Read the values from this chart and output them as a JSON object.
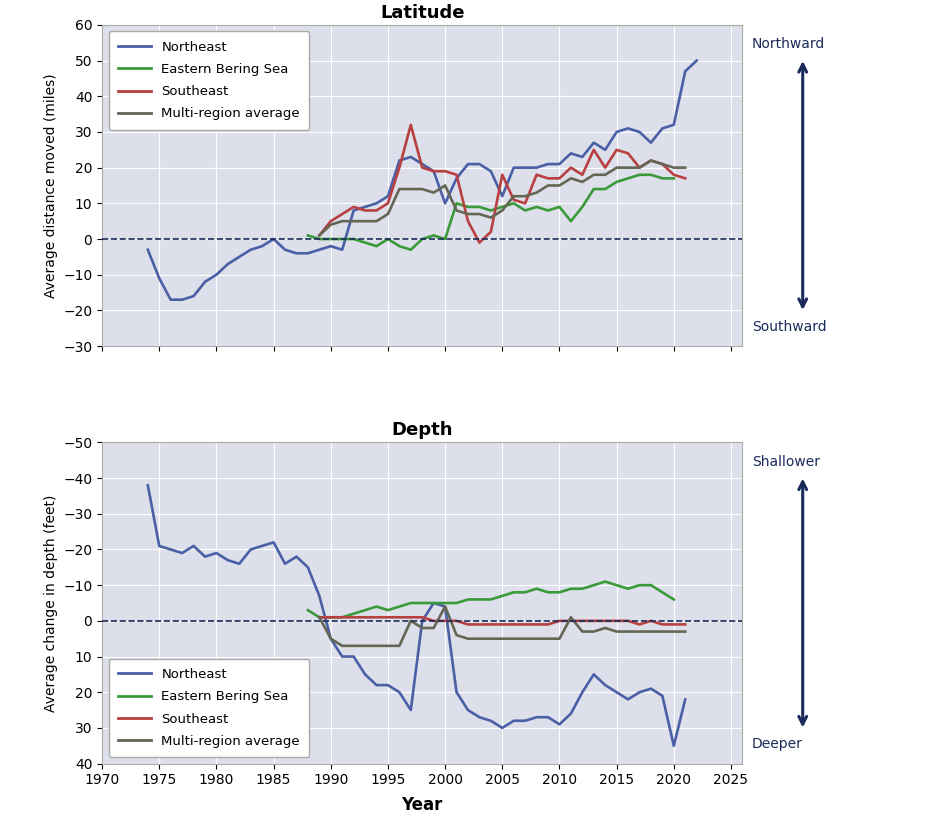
{
  "lat": {
    "northeast": {
      "x": [
        1974,
        1975,
        1976,
        1977,
        1978,
        1979,
        1980,
        1981,
        1982,
        1983,
        1984,
        1985,
        1986,
        1987,
        1988,
        1989,
        1990,
        1991,
        1992,
        1993,
        1994,
        1995,
        1996,
        1997,
        1998,
        1999,
        2000,
        2001,
        2002,
        2003,
        2004,
        2005,
        2006,
        2007,
        2008,
        2009,
        2010,
        2011,
        2012,
        2013,
        2014,
        2015,
        2016,
        2017,
        2018,
        2019,
        2020,
        2021,
        2022
      ],
      "y": [
        -3,
        -11,
        -17,
        -17,
        -16,
        -12,
        -10,
        -7,
        -5,
        -3,
        -2,
        0,
        -3,
        -4,
        -4,
        -3,
        -2,
        -3,
        8,
        9,
        10,
        12,
        22,
        23,
        21,
        19,
        10,
        17,
        21,
        21,
        19,
        12,
        20,
        20,
        20,
        21,
        21,
        24,
        23,
        27,
        25,
        30,
        31,
        30,
        27,
        31,
        32,
        47,
        50
      ]
    },
    "eastern_bering_sea": {
      "x": [
        1988,
        1989,
        1990,
        1991,
        1992,
        1993,
        1994,
        1995,
        1996,
        1997,
        1998,
        1999,
        2000,
        2001,
        2002,
        2003,
        2004,
        2005,
        2006,
        2007,
        2008,
        2009,
        2010,
        2011,
        2012,
        2013,
        2014,
        2015,
        2016,
        2017,
        2018,
        2019,
        2020
      ],
      "y": [
        1,
        0,
        0,
        0,
        0,
        -1,
        -2,
        0,
        -2,
        -3,
        0,
        1,
        0,
        10,
        9,
        9,
        8,
        9,
        10,
        8,
        9,
        8,
        9,
        5,
        9,
        14,
        14,
        16,
        17,
        18,
        18,
        17,
        17
      ]
    },
    "southeast": {
      "x": [
        1989,
        1990,
        1991,
        1992,
        1993,
        1994,
        1995,
        1996,
        1997,
        1998,
        1999,
        2000,
        2001,
        2002,
        2003,
        2004,
        2005,
        2006,
        2007,
        2008,
        2009,
        2010,
        2011,
        2012,
        2013,
        2014,
        2015,
        2016,
        2017,
        2018,
        2019,
        2020,
        2021
      ],
      "y": [
        1,
        5,
        7,
        9,
        8,
        8,
        10,
        20,
        32,
        20,
        19,
        19,
        18,
        5,
        -1,
        2,
        18,
        11,
        10,
        18,
        17,
        17,
        20,
        18,
        25,
        20,
        25,
        24,
        20,
        22,
        21,
        18,
        17
      ]
    },
    "multi_region": {
      "x": [
        1989,
        1990,
        1991,
        1992,
        1993,
        1994,
        1995,
        1996,
        1997,
        1998,
        1999,
        2000,
        2001,
        2002,
        2003,
        2004,
        2005,
        2006,
        2007,
        2008,
        2009,
        2010,
        2011,
        2012,
        2013,
        2014,
        2015,
        2016,
        2017,
        2018,
        2019,
        2020,
        2021
      ],
      "y": [
        1,
        4,
        5,
        5,
        5,
        5,
        7,
        14,
        14,
        14,
        13,
        15,
        8,
        7,
        7,
        6,
        8,
        12,
        12,
        13,
        15,
        15,
        17,
        16,
        18,
        18,
        20,
        20,
        20,
        22,
        21,
        20,
        20
      ]
    }
  },
  "depth": {
    "northeast": {
      "x": [
        1974,
        1975,
        1976,
        1977,
        1978,
        1979,
        1980,
        1981,
        1982,
        1983,
        1984,
        1985,
        1986,
        1987,
        1988,
        1989,
        1990,
        1991,
        1992,
        1993,
        1994,
        1995,
        1996,
        1997,
        1998,
        1999,
        2000,
        2001,
        2002,
        2003,
        2004,
        2005,
        2006,
        2007,
        2008,
        2009,
        2010,
        2011,
        2012,
        2013,
        2014,
        2015,
        2016,
        2017,
        2018,
        2019,
        2020,
        2021
      ],
      "y": [
        -38,
        -21,
        -20,
        -19,
        -21,
        -18,
        -19,
        -17,
        -16,
        -20,
        -21,
        -22,
        -16,
        -18,
        -15,
        -7,
        5,
        10,
        10,
        15,
        18,
        18,
        20,
        25,
        0,
        -5,
        -4,
        20,
        25,
        27,
        28,
        30,
        28,
        28,
        27,
        27,
        29,
        26,
        20,
        15,
        18,
        20,
        22,
        20,
        19,
        21,
        35,
        22
      ]
    },
    "eastern_bering_sea": {
      "x": [
        1988,
        1989,
        1990,
        1991,
        1992,
        1993,
        1994,
        1995,
        1996,
        1997,
        1998,
        1999,
        2000,
        2001,
        2002,
        2003,
        2004,
        2005,
        2006,
        2007,
        2008,
        2009,
        2010,
        2011,
        2012,
        2013,
        2014,
        2015,
        2016,
        2017,
        2018,
        2019,
        2020
      ],
      "y": [
        -3,
        -1,
        -1,
        -1,
        -2,
        -3,
        -4,
        -3,
        -4,
        -5,
        -5,
        -5,
        -5,
        -5,
        -6,
        -6,
        -6,
        -7,
        -8,
        -8,
        -9,
        -8,
        -8,
        -9,
        -9,
        -10,
        -11,
        -10,
        -9,
        -10,
        -10,
        -8,
        -6
      ]
    },
    "southeast": {
      "x": [
        1989,
        1990,
        1991,
        1992,
        1993,
        1994,
        1995,
        1996,
        1997,
        1998,
        1999,
        2000,
        2001,
        2002,
        2003,
        2004,
        2005,
        2006,
        2007,
        2008,
        2009,
        2010,
        2011,
        2012,
        2013,
        2014,
        2015,
        2016,
        2017,
        2018,
        2019,
        2020,
        2021
      ],
      "y": [
        -1,
        -1,
        -1,
        -1,
        -1,
        -1,
        -1,
        -1,
        -1,
        -1,
        0,
        0,
        0,
        1,
        1,
        1,
        1,
        1,
        1,
        1,
        1,
        0,
        0,
        0,
        0,
        0,
        0,
        0,
        1,
        0,
        1,
        1,
        1
      ]
    },
    "multi_region": {
      "x": [
        1989,
        1990,
        1991,
        1992,
        1993,
        1994,
        1995,
        1996,
        1997,
        1998,
        1999,
        2000,
        2001,
        2002,
        2003,
        2004,
        2005,
        2006,
        2007,
        2008,
        2009,
        2010,
        2011,
        2012,
        2013,
        2014,
        2015,
        2016,
        2017,
        2018,
        2019,
        2020,
        2021
      ],
      "y": [
        -1,
        5,
        7,
        7,
        7,
        7,
        7,
        7,
        0,
        2,
        2,
        -4,
        4,
        5,
        5,
        5,
        5,
        5,
        5,
        5,
        5,
        5,
        -1,
        3,
        3,
        2,
        3,
        3,
        3,
        3,
        3,
        3,
        3
      ]
    }
  },
  "colors": {
    "northeast": "#4a5fa5",
    "eastern_bering_sea": "#3a9a3a",
    "southeast": "#b84040",
    "multi_region": "#666655"
  },
  "bg_color": "#dde0ea",
  "title_lat": "Latitude",
  "title_depth": "Depth",
  "ylabel_lat": "Average distance moved (miles)",
  "ylabel_depth": "Average change in depth (feet)",
  "xlabel": "Year",
  "xlim": [
    1970,
    2026
  ],
  "ylim_lat": [
    -30,
    60
  ],
  "ylim_depth_bottom": 40,
  "ylim_depth_top": -50,
  "yticks_lat": [
    -30,
    -20,
    -10,
    0,
    10,
    20,
    30,
    40,
    50,
    60
  ],
  "yticks_depth": [
    -50,
    -40,
    -30,
    -20,
    -10,
    0,
    10,
    20,
    30,
    40
  ],
  "xticks": [
    1970,
    1975,
    1980,
    1985,
    1990,
    1995,
    2000,
    2005,
    2010,
    2015,
    2020,
    2025
  ],
  "legend_labels": [
    "Northeast",
    "Eastern Bering Sea",
    "Southeast",
    "Multi-region average"
  ],
  "arrow_color": "#1a2a5a",
  "lat_arrow_top": "Northward",
  "lat_arrow_bot": "Southward",
  "depth_arrow_top": "Shallower",
  "depth_arrow_bot": "Deeper"
}
